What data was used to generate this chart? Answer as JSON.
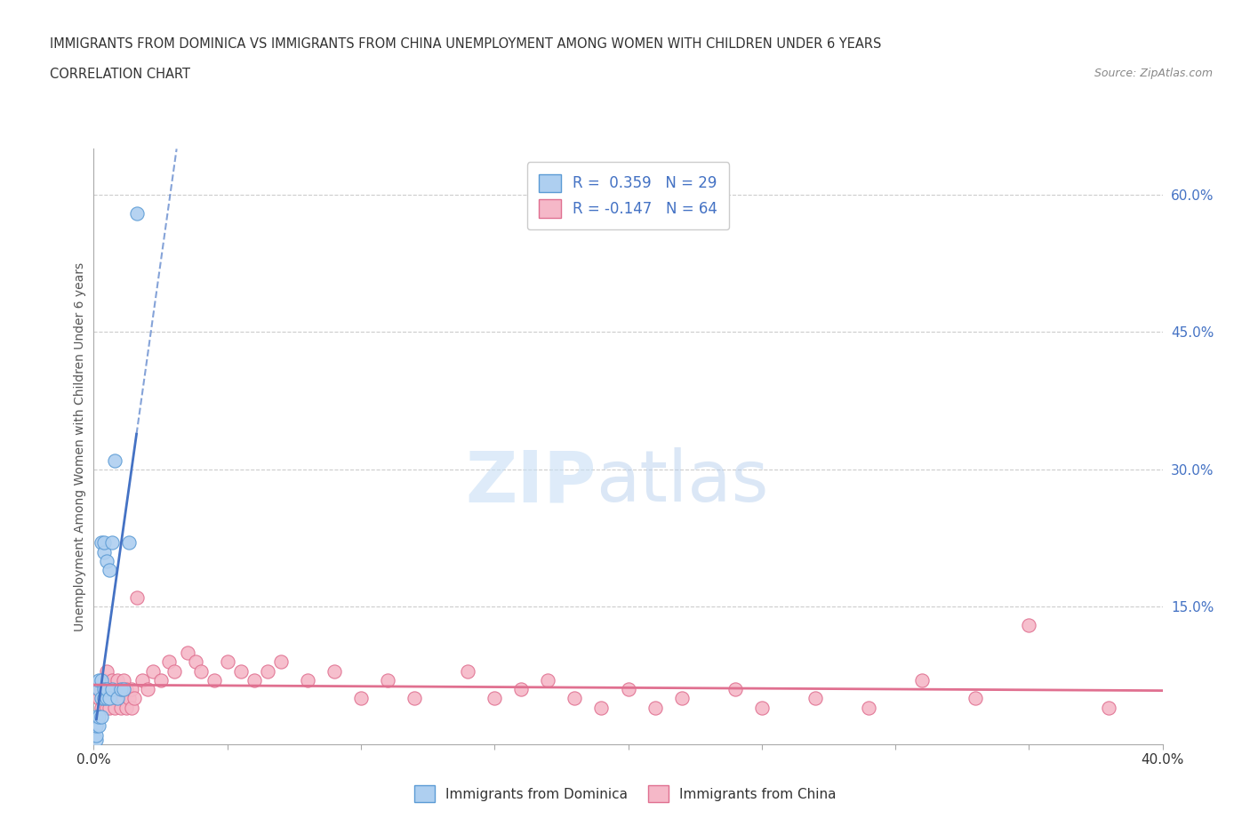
{
  "title_line1": "IMMIGRANTS FROM DOMINICA VS IMMIGRANTS FROM CHINA UNEMPLOYMENT AMONG WOMEN WITH CHILDREN UNDER 6 YEARS",
  "title_line2": "CORRELATION CHART",
  "source_text": "Source: ZipAtlas.com",
  "ylabel": "Unemployment Among Women with Children Under 6 years",
  "xlim": [
    0.0,
    0.4
  ],
  "ylim": [
    0.0,
    0.65
  ],
  "x_ticks": [
    0.0,
    0.05,
    0.1,
    0.15,
    0.2,
    0.25,
    0.3,
    0.35,
    0.4
  ],
  "y_ticks_right": [
    0.0,
    0.15,
    0.3,
    0.45,
    0.6
  ],
  "dominica_color": "#aecff0",
  "dominica_edge_color": "#5b9bd5",
  "china_color": "#f5b8c8",
  "china_edge_color": "#e07090",
  "dominica_R": 0.359,
  "dominica_N": 29,
  "china_R": -0.147,
  "china_N": 64,
  "trend_blue_color": "#4472c4",
  "trend_pink_color": "#e07090",
  "watermark_zip": "ZIP",
  "watermark_atlas": "atlas",
  "background_color": "#ffffff",
  "dominica_x": [
    0.001,
    0.001,
    0.001,
    0.001,
    0.002,
    0.002,
    0.002,
    0.002,
    0.003,
    0.003,
    0.003,
    0.003,
    0.004,
    0.004,
    0.004,
    0.004,
    0.005,
    0.005,
    0.005,
    0.006,
    0.006,
    0.007,
    0.007,
    0.008,
    0.009,
    0.01,
    0.011,
    0.013,
    0.016
  ],
  "dominica_y": [
    0.005,
    0.01,
    0.02,
    0.03,
    0.02,
    0.03,
    0.06,
    0.07,
    0.03,
    0.05,
    0.07,
    0.22,
    0.05,
    0.06,
    0.21,
    0.22,
    0.05,
    0.06,
    0.2,
    0.05,
    0.19,
    0.06,
    0.22,
    0.31,
    0.05,
    0.06,
    0.06,
    0.22,
    0.58
  ],
  "china_x": [
    0.002,
    0.003,
    0.003,
    0.004,
    0.004,
    0.005,
    0.005,
    0.005,
    0.006,
    0.006,
    0.007,
    0.007,
    0.008,
    0.008,
    0.009,
    0.009,
    0.01,
    0.01,
    0.011,
    0.011,
    0.012,
    0.012,
    0.013,
    0.014,
    0.014,
    0.015,
    0.016,
    0.018,
    0.02,
    0.022,
    0.025,
    0.028,
    0.03,
    0.035,
    0.038,
    0.04,
    0.045,
    0.05,
    0.055,
    0.06,
    0.065,
    0.07,
    0.08,
    0.09,
    0.1,
    0.11,
    0.12,
    0.14,
    0.15,
    0.16,
    0.17,
    0.18,
    0.19,
    0.2,
    0.21,
    0.22,
    0.24,
    0.25,
    0.27,
    0.29,
    0.31,
    0.33,
    0.35,
    0.38
  ],
  "china_y": [
    0.05,
    0.04,
    0.06,
    0.05,
    0.07,
    0.04,
    0.06,
    0.08,
    0.04,
    0.06,
    0.05,
    0.07,
    0.04,
    0.06,
    0.05,
    0.07,
    0.04,
    0.06,
    0.05,
    0.07,
    0.04,
    0.06,
    0.05,
    0.04,
    0.06,
    0.05,
    0.16,
    0.07,
    0.06,
    0.08,
    0.07,
    0.09,
    0.08,
    0.1,
    0.09,
    0.08,
    0.07,
    0.09,
    0.08,
    0.07,
    0.08,
    0.09,
    0.07,
    0.08,
    0.05,
    0.07,
    0.05,
    0.08,
    0.05,
    0.06,
    0.07,
    0.05,
    0.04,
    0.06,
    0.04,
    0.05,
    0.06,
    0.04,
    0.05,
    0.04,
    0.07,
    0.05,
    0.13,
    0.04
  ]
}
